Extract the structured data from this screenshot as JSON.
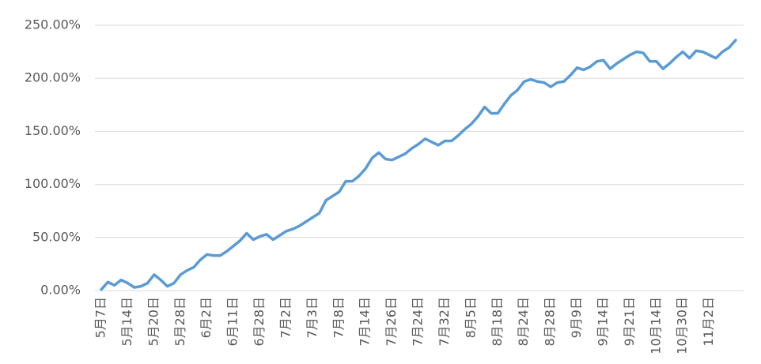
{
  "chart_data": {
    "type": "line",
    "categories": [
      "5月7日",
      null,
      null,
      null,
      "5月14日",
      null,
      null,
      null,
      "5月20日",
      null,
      null,
      null,
      "5月28日",
      null,
      null,
      null,
      "6月2日",
      null,
      null,
      null,
      "6月11日",
      null,
      null,
      null,
      "6月28日",
      null,
      null,
      null,
      "7月2日",
      null,
      null,
      null,
      "7月3日",
      null,
      null,
      null,
      "7月8日",
      null,
      null,
      null,
      "7月14日",
      null,
      null,
      null,
      "7月26日",
      null,
      null,
      null,
      "7月24日",
      null,
      null,
      null,
      "7月32日",
      null,
      null,
      null,
      "8月5日",
      null,
      null,
      null,
      "8月18日",
      null,
      null,
      null,
      "8月24日",
      null,
      null,
      null,
      "8月28日",
      null,
      null,
      null,
      "9月9日",
      null,
      null,
      null,
      "9月14日",
      null,
      null,
      null,
      "9月21日",
      null,
      null,
      null,
      "10月14日",
      null,
      null,
      null,
      "10月30日",
      null,
      null,
      null,
      "11月2日",
      null,
      null,
      null,
      null
    ],
    "values": [
      1,
      8,
      5,
      10,
      7,
      3,
      4,
      7,
      15,
      10,
      4,
      7,
      15,
      19,
      22,
      29,
      34,
      33,
      33,
      37,
      42,
      47,
      54,
      48,
      51,
      53,
      48,
      52,
      56,
      58,
      61,
      65,
      69,
      73,
      85,
      89,
      93,
      103,
      103,
      108,
      115,
      125,
      130,
      124,
      123,
      126,
      129,
      134,
      138,
      143,
      140,
      137,
      141,
      141,
      146,
      152,
      157,
      164,
      173,
      167,
      167,
      176,
      184,
      189,
      197,
      199,
      197,
      196,
      192,
      196,
      197,
      203,
      210,
      208,
      211,
      216,
      217,
      209,
      214,
      218,
      222,
      225,
      224,
      216,
      216,
      209,
      214,
      220,
      225,
      219,
      226,
      225,
      222,
      219,
      225,
      229,
      236
    ],
    "color": "#5b9bd5",
    "ylim": [
      0,
      250
    ],
    "yticks": [
      {
        "value": 0,
        "label": "0.00%"
      },
      {
        "value": 50,
        "label": "50.00%"
      },
      {
        "value": 100,
        "label": "100.00%"
      },
      {
        "value": 150,
        "label": "150.00%"
      },
      {
        "value": 200,
        "label": "200.00%"
      },
      {
        "value": 250,
        "label": "250.00%"
      }
    ],
    "grid": true
  }
}
